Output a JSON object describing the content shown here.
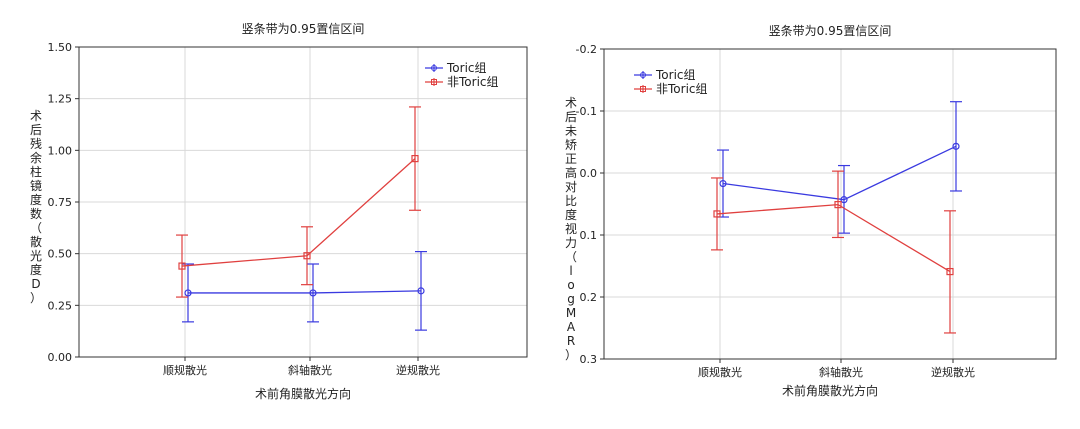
{
  "chart_data": [
    {
      "type": "line",
      "title": "竖条带为0.95置信区间",
      "xlabel": "术前角膜散光方向",
      "ylabel": "术后残余柱镜度数（散光度D）",
      "categories": [
        "顺规散光",
        "斜轴散光",
        "逆规散光"
      ],
      "ylim": [
        0,
        1.5
      ],
      "yticks": [
        "0.00",
        "0.25",
        "0.50",
        "0.75",
        "1.00",
        "1.25",
        "1.50"
      ],
      "y_inverted": false,
      "grid": true,
      "legend_position": "top-right",
      "series": [
        {
          "name": "Toric组",
          "color": "#3a3ae0",
          "values": [
            0.31,
            0.31,
            0.32
          ],
          "ci_low": [
            0.17,
            0.17,
            0.13
          ],
          "ci_high": [
            0.45,
            0.45,
            0.51
          ]
        },
        {
          "name": "非Toric组",
          "color": "#e0403f",
          "values": [
            0.44,
            0.49,
            0.96
          ],
          "ci_low": [
            0.29,
            0.35,
            0.71
          ],
          "ci_high": [
            0.59,
            0.63,
            1.21
          ]
        }
      ]
    },
    {
      "type": "line",
      "title": "竖条带为0.95置信区间",
      "xlabel": "术前角膜散光方向",
      "ylabel": "术后未矫正高对比度视力（logMAR）",
      "categories": [
        "顺规散光",
        "斜轴散光",
        "逆规散光"
      ],
      "ylim": [
        -0.2,
        0.3
      ],
      "yticks": [
        "-0.2",
        "-0.1",
        "0.0",
        "0.1",
        "0.2",
        "0.3"
      ],
      "y_inverted": true,
      "grid": true,
      "legend_position": "top-left",
      "series": [
        {
          "name": "Toric组",
          "color": "#3a3ae0",
          "values": [
            0.017,
            0.043,
            -0.043
          ],
          "ci_low": [
            -0.037,
            -0.012,
            -0.115
          ],
          "ci_high": [
            0.071,
            0.097,
            0.029
          ]
        },
        {
          "name": "非Toric组",
          "color": "#e0403f",
          "values": [
            0.066,
            0.051,
            0.159
          ],
          "ci_low": [
            0.008,
            -0.003,
            0.061
          ],
          "ci_high": [
            0.124,
            0.104,
            0.258
          ]
        }
      ]
    }
  ]
}
